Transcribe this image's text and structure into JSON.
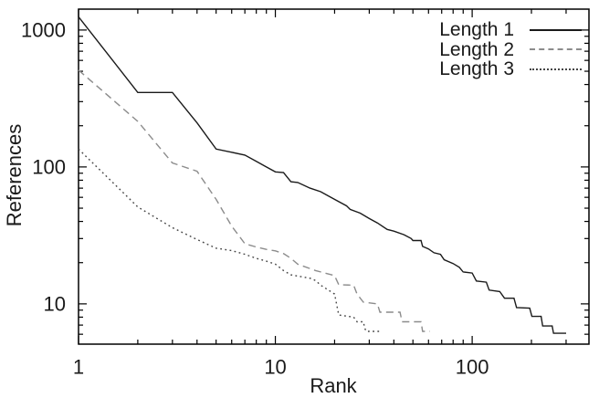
{
  "figure": {
    "background": "#ffffff",
    "axis_color": "#000000",
    "text_color": "#1a1a1a"
  },
  "chart_data": {
    "type": "line",
    "title": "",
    "xlabel": "Rank",
    "ylabel": "References",
    "x_scale": "log",
    "y_scale": "log",
    "xlim": [
      1,
      392
    ],
    "ylim": [
      5.08,
      1421
    ],
    "grid": false,
    "legend_position": "top-right-inside",
    "x_ticks": [
      {
        "value": 1,
        "label": "1"
      },
      {
        "value": 10,
        "label": "10"
      },
      {
        "value": 100,
        "label": "100"
      }
    ],
    "y_ticks": [
      {
        "value": 10,
        "label": "10"
      },
      {
        "value": 100,
        "label": "100"
      },
      {
        "value": 1000,
        "label": "1000"
      }
    ],
    "minor_ticks": "log-decade-multiples",
    "series": [
      {
        "name": "Length 1",
        "style": "solid",
        "color": "#1a1a1a",
        "points": [
          [
            1,
            1250
          ],
          [
            2,
            350
          ],
          [
            3,
            350
          ],
          [
            4,
            210
          ],
          [
            5,
            135
          ],
          [
            6,
            128
          ],
          [
            7,
            122
          ],
          [
            8,
            110
          ],
          [
            9,
            100
          ],
          [
            10,
            92
          ],
          [
            11,
            91
          ],
          [
            12,
            78
          ],
          [
            13,
            77
          ],
          [
            15,
            70
          ],
          [
            17,
            66
          ],
          [
            18,
            63
          ],
          [
            20,
            58
          ],
          [
            23,
            52
          ],
          [
            24,
            49
          ],
          [
            27,
            46
          ],
          [
            30,
            42
          ],
          [
            33,
            39
          ],
          [
            37,
            35
          ],
          [
            40,
            34
          ],
          [
            45,
            32
          ],
          [
            49,
            30
          ],
          [
            50,
            29
          ],
          [
            55,
            29
          ],
          [
            56,
            26.3
          ],
          [
            60,
            25.2
          ],
          [
            64,
            23.6
          ],
          [
            69,
            23
          ],
          [
            72,
            21
          ],
          [
            80,
            19.7
          ],
          [
            86,
            18.5
          ],
          [
            90,
            17.1
          ],
          [
            100,
            16.8
          ],
          [
            105,
            14.7
          ],
          [
            118,
            14.4
          ],
          [
            122,
            12.6
          ],
          [
            138,
            12.3
          ],
          [
            146,
            11
          ],
          [
            163,
            11
          ],
          [
            168,
            9.4
          ],
          [
            196,
            9.3
          ],
          [
            201,
            8.1
          ],
          [
            224,
            8.1
          ],
          [
            228,
            6.9
          ],
          [
            255,
            6.9
          ],
          [
            259,
            6.1
          ],
          [
            300,
            6.1
          ]
        ]
      },
      {
        "name": "Length 2",
        "style": "dashed",
        "color": "#8c8c8c",
        "points": [
          [
            1,
            510
          ],
          [
            2,
            215
          ],
          [
            3,
            107
          ],
          [
            4,
            93
          ],
          [
            5,
            58
          ],
          [
            6,
            37
          ],
          [
            7,
            27.5
          ],
          [
            8,
            26
          ],
          [
            9,
            25
          ],
          [
            10,
            24.4
          ],
          [
            11,
            23.3
          ],
          [
            12,
            21.5
          ],
          [
            13,
            19.5
          ],
          [
            16,
            17.5
          ],
          [
            20,
            16.1
          ],
          [
            21,
            13.8
          ],
          [
            25,
            13.7
          ],
          [
            26,
            11.8
          ],
          [
            28,
            10.3
          ],
          [
            33,
            10
          ],
          [
            34,
            8.7
          ],
          [
            43,
            8.7
          ],
          [
            44,
            7.4
          ],
          [
            55,
            7.4
          ],
          [
            56,
            6.3
          ],
          [
            61,
            6.3
          ]
        ]
      },
      {
        "name": "Length 3",
        "style": "dotted",
        "color": "#454545",
        "points": [
          [
            1,
            135
          ],
          [
            2,
            51
          ],
          [
            3,
            36
          ],
          [
            4,
            29.5
          ],
          [
            5,
            25.5
          ],
          [
            6,
            24.5
          ],
          [
            7,
            23
          ],
          [
            8,
            21.5
          ],
          [
            9,
            20.5
          ],
          [
            10,
            19.5
          ],
          [
            11,
            17.5
          ],
          [
            12,
            16.3
          ],
          [
            15,
            15.4
          ],
          [
            16,
            14.8
          ],
          [
            17,
            13.7
          ],
          [
            20,
            11.8
          ],
          [
            21,
            8.3
          ],
          [
            25,
            8
          ],
          [
            26,
            7.4
          ],
          [
            28,
            7.4
          ],
          [
            28.5,
            6.6
          ],
          [
            29,
            6.3
          ],
          [
            34,
            6.3
          ]
        ]
      }
    ]
  }
}
